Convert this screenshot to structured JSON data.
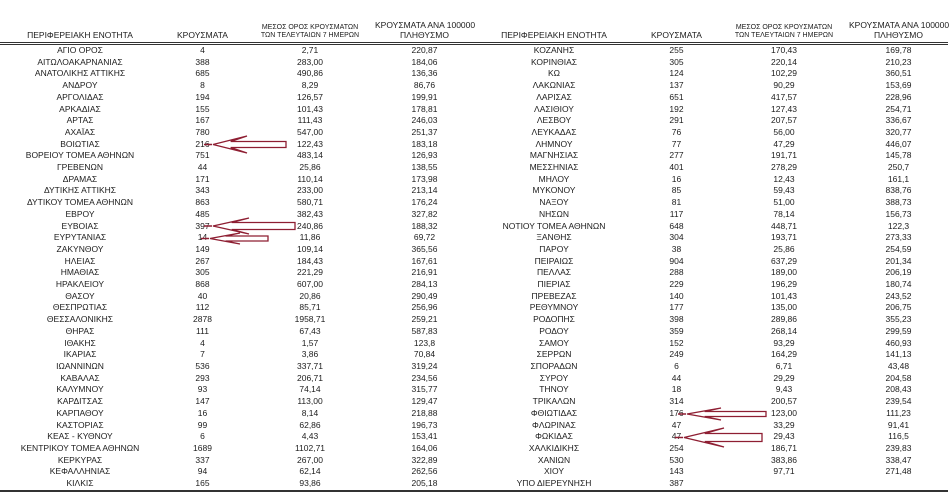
{
  "columns": {
    "region": "ΠΕΡΙΦΕΡΕΙΑΚΗ ΕΝΟΤΗΤΑ",
    "cases": "ΚΡΟΥΣΜΑΤΑ",
    "avg7_line1": "ΜΕΣΟΣ ΟΡΟΣ ΚΡΟΥΣΜΑΤΩΝ",
    "avg7_line2": "ΤΩΝ ΤΕΛΕΥΤΑΙΩΝ 7 ΗΜΕΡΩΝ",
    "per100k_line1": "ΚΡΟΥΣΜΑΤΑ ΑΝΑ 100000",
    "per100k_line2": "ΠΛΗΘΥΣΜΟ"
  },
  "tables": {
    "left": {
      "rows": [
        [
          "ΑΓΙΟ ΟΡΟΣ",
          "4",
          "2,71",
          "220,87"
        ],
        [
          "ΑΙΤΩΛΟΑΚΑΡΝΑΝΙΑΣ",
          "388",
          "283,00",
          "184,06"
        ],
        [
          "ΑΝΑΤΟΛΙΚΗΣ ΑΤΤΙΚΗΣ",
          "685",
          "490,86",
          "136,36"
        ],
        [
          "ΑΝΔΡΟΥ",
          "8",
          "8,29",
          "86,76"
        ],
        [
          "ΑΡΓΟΛΙΔΑΣ",
          "194",
          "126,57",
          "199,91"
        ],
        [
          "ΑΡΚΑΔΙΑΣ",
          "155",
          "101,43",
          "178,81"
        ],
        [
          "ΑΡΤΑΣ",
          "167",
          "111,43",
          "246,03"
        ],
        [
          "ΑΧΑΪΑΣ",
          "780",
          "547,00",
          "251,37"
        ],
        [
          "ΒΟΙΩΤΙΑΣ",
          "216",
          "122,43",
          "183,18"
        ],
        [
          "ΒΟΡΕΙΟΥ ΤΟΜΕΑ ΑΘΗΝΩΝ",
          "751",
          "483,14",
          "126,93"
        ],
        [
          "ΓΡΕΒΕΝΩΝ",
          "44",
          "25,86",
          "138,55"
        ],
        [
          "ΔΡΑΜΑΣ",
          "171",
          "110,14",
          "173,98"
        ],
        [
          "ΔΥΤΙΚΗΣ ΑΤΤΙΚΗΣ",
          "343",
          "233,00",
          "213,14"
        ],
        [
          "ΔΥΤΙΚΟΥ ΤΟΜΕΑ ΑΘΗΝΩΝ",
          "863",
          "580,71",
          "176,24"
        ],
        [
          "ΕΒΡΟΥ",
          "485",
          "382,43",
          "327,82"
        ],
        [
          "ΕΥΒΟΙΑΣ",
          "397",
          "240,86",
          "188,32"
        ],
        [
          "ΕΥΡΥΤΑΝΙΑΣ",
          "14",
          "11,86",
          "69,72"
        ],
        [
          "ΖΑΚΥΝΘΟΥ",
          "149",
          "109,14",
          "365,56"
        ],
        [
          "ΗΛΕΙΑΣ",
          "267",
          "184,43",
          "167,61"
        ],
        [
          "ΗΜΑΘΙΑΣ",
          "305",
          "221,29",
          "216,91"
        ],
        [
          "ΗΡΑΚΛΕΙΟΥ",
          "868",
          "607,00",
          "284,13"
        ],
        [
          "ΘΑΣΟΥ",
          "40",
          "20,86",
          "290,49"
        ],
        [
          "ΘΕΣΠΡΩΤΙΑΣ",
          "112",
          "85,71",
          "256,96"
        ],
        [
          "ΘΕΣΣΑΛΟΝΙΚΗΣ",
          "2878",
          "1958,71",
          "259,21"
        ],
        [
          "ΘΗΡΑΣ",
          "111",
          "67,43",
          "587,83"
        ],
        [
          "ΙΘΑΚΗΣ",
          "4",
          "1,57",
          "123,8"
        ],
        [
          "ΙΚΑΡΙΑΣ",
          "7",
          "3,86",
          "70,84"
        ],
        [
          "ΙΩΑΝΝΙΝΩΝ",
          "536",
          "337,71",
          "319,24"
        ],
        [
          "ΚΑΒΑΛΑΣ",
          "293",
          "206,71",
          "234,56"
        ],
        [
          "ΚΑΛΥΜΝΟΥ",
          "93",
          "74,14",
          "315,77"
        ],
        [
          "ΚΑΡΔΙΤΣΑΣ",
          "147",
          "113,00",
          "129,47"
        ],
        [
          "ΚΑΡΠΑΘΟΥ",
          "16",
          "8,14",
          "218,88"
        ],
        [
          "ΚΑΣΤΟΡΙΑΣ",
          "99",
          "62,86",
          "196,73"
        ],
        [
          "ΚΕΑΣ - ΚΥΘΝΟΥ",
          "6",
          "4,43",
          "153,41"
        ],
        [
          "ΚΕΝΤΡΙΚΟΥ ΤΟΜΕΑ ΑΘΗΝΩΝ",
          "1689",
          "1102,71",
          "164,06"
        ],
        [
          "ΚΕΡΚΥΡΑΣ",
          "337",
          "267,00",
          "322,89"
        ],
        [
          "ΚΕΦΑΛΛΗΝΙΑΣ",
          "94",
          "62,14",
          "262,56"
        ],
        [
          "ΚΙΛΚΙΣ",
          "165",
          "93,86",
          "205,18"
        ]
      ]
    },
    "right": {
      "rows": [
        [
          "ΚΟΖΑΝΗΣ",
          "255",
          "170,43",
          "169,78"
        ],
        [
          "ΚΟΡΙΝΘΙΑΣ",
          "305",
          "220,14",
          "210,23"
        ],
        [
          "ΚΩ",
          "124",
          "102,29",
          "360,51"
        ],
        [
          "ΛΑΚΩΝΙΑΣ",
          "137",
          "90,29",
          "153,69"
        ],
        [
          "ΛΑΡΙΣΑΣ",
          "651",
          "417,57",
          "228,96"
        ],
        [
          "ΛΑΣΙΘΙΟΥ",
          "192",
          "127,43",
          "254,71"
        ],
        [
          "ΛΕΣΒΟΥ",
          "291",
          "207,57",
          "336,67"
        ],
        [
          "ΛΕΥΚΑΔΑΣ",
          "76",
          "56,00",
          "320,77"
        ],
        [
          "ΛΗΜΝΟΥ",
          "77",
          "47,29",
          "446,07"
        ],
        [
          "ΜΑΓΝΗΣΙΑΣ",
          "277",
          "191,71",
          "145,78"
        ],
        [
          "ΜΕΣΣΗΝΙΑΣ",
          "401",
          "278,29",
          "250,7"
        ],
        [
          "ΜΗΛΟΥ",
          "16",
          "12,43",
          "161,1"
        ],
        [
          "ΜΥΚΟΝΟΥ",
          "85",
          "59,43",
          "838,76"
        ],
        [
          "ΝΑΞΟΥ",
          "81",
          "51,00",
          "388,73"
        ],
        [
          "ΝΗΣΩΝ",
          "117",
          "78,14",
          "156,73"
        ],
        [
          "ΝΟΤΙΟΥ ΤΟΜΕΑ ΑΘΗΝΩΝ",
          "648",
          "448,71",
          "122,3"
        ],
        [
          "ΞΑΝΘΗΣ",
          "304",
          "193,71",
          "273,33"
        ],
        [
          "ΠΑΡΟΥ",
          "38",
          "25,86",
          "254,59"
        ],
        [
          "ΠΕΙΡΑΙΩΣ",
          "904",
          "637,29",
          "201,34"
        ],
        [
          "ΠΕΛΛΑΣ",
          "288",
          "189,00",
          "206,19"
        ],
        [
          "ΠΙΕΡΙΑΣ",
          "229",
          "196,29",
          "180,74"
        ],
        [
          "ΠΡΕΒΕΖΑΣ",
          "140",
          "101,43",
          "243,52"
        ],
        [
          "ΡΕΘΥΜΝΟΥ",
          "177",
          "135,00",
          "206,75"
        ],
        [
          "ΡΟΔΟΠΗΣ",
          "398",
          "289,86",
          "355,23"
        ],
        [
          "ΡΟΔΟΥ",
          "359",
          "268,14",
          "299,59"
        ],
        [
          "ΣΑΜΟΥ",
          "152",
          "93,29",
          "460,93"
        ],
        [
          "ΣΕΡΡΩΝ",
          "249",
          "164,29",
          "141,13"
        ],
        [
          "ΣΠΟΡΑΔΩΝ",
          "6",
          "6,71",
          "43,48"
        ],
        [
          "ΣΥΡΟΥ",
          "44",
          "29,29",
          "204,58"
        ],
        [
          "ΤΗΝΟΥ",
          "18",
          "9,43",
          "208,43"
        ],
        [
          "ΤΡΙΚΑΛΩΝ",
          "314",
          "200,57",
          "239,54"
        ],
        [
          "ΦΘΙΩΤΙΔΑΣ",
          "176",
          "123,00",
          "111,23"
        ],
        [
          "ΦΛΩΡΙΝΑΣ",
          "47",
          "33,29",
          "91,41"
        ],
        [
          "ΦΩΚΙΔΑΣ",
          "47",
          "29,43",
          "116,5"
        ],
        [
          "ΧΑΛΚΙΔΙΚΗΣ",
          "254",
          "186,71",
          "239,83"
        ],
        [
          "ΧΑΝΙΩΝ",
          "530",
          "383,86",
          "338,47"
        ],
        [
          "ΧΙΟΥ",
          "143",
          "97,71",
          "271,48"
        ],
        [
          "ΥΠΟ ΔΙΕΡΕΥΝΗΣΗ",
          "387",
          "",
          ""
        ]
      ]
    }
  },
  "annotations": {
    "arrow_color": "#8e1e32",
    "arrows": [
      {
        "table": "left",
        "region": "ΒΟΙΩΤΙΑΣ",
        "length": 73,
        "head_w": 34,
        "head_h": 17,
        "tail_h": 6
      },
      {
        "table": "left",
        "region": "ΕΥΒΟΙΑΣ",
        "length": 82,
        "head_w": 36,
        "head_h": 16,
        "tail_h": 7
      },
      {
        "table": "left",
        "region": "ΕΥΡΥΤΑΝΙΑΣ",
        "length": 58,
        "head_w": 30,
        "head_h": 11,
        "tail_h": 5
      },
      {
        "table": "right",
        "region": "ΦΘΙΩΤΙΔΑΣ",
        "length": 79,
        "head_w": 34,
        "head_h": 12,
        "tail_h": 5
      },
      {
        "table": "right",
        "region": "ΦΩΚΙΔΑΣ",
        "length": 78,
        "head_w": 40,
        "head_h": 19,
        "tail_h": 8
      }
    ]
  },
  "colors": {
    "text": "#1c1c1c",
    "rule": "#333333",
    "background": "#ffffff"
  }
}
